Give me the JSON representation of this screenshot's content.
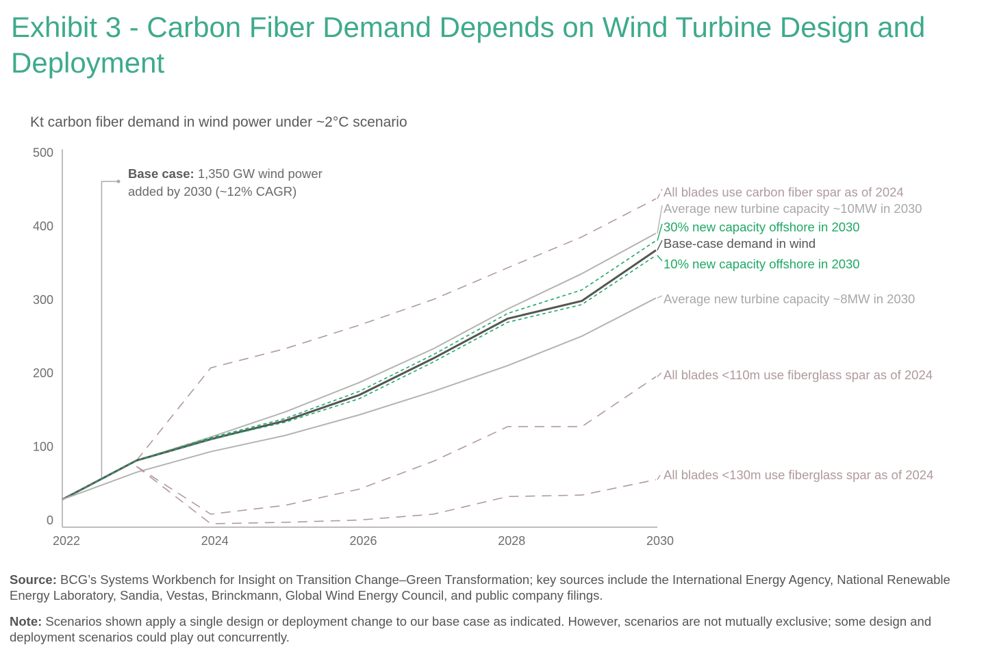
{
  "header": {
    "title": "Exhibit 3 - Carbon Fiber Demand Depends on Wind Turbine Design and Deployment",
    "subtitle": "Kt carbon fiber demand in wind power under ~2°C scenario"
  },
  "annotation": {
    "bold": "Base case:",
    "line1": " 1,350 GW wind power",
    "line2": "added by 2030 (~12% CAGR)"
  },
  "footer": {
    "source_label": "Source:",
    "source_text": " BCG’s Systems Workbench for Insight on Transition Change–Green Transformation; key sources include the International Energy Agency, National Renewable Energy Laboratory, Sandia, Vestas, Brinckmann, Global Wind Energy Council, and public company filings.",
    "note_label": "Note:",
    "note_text": " Scenarios shown apply a single design or deployment change to our base case as indicated. However, scenarios are not mutually exclusive; some design and deployment scenarios could play out concurrently."
  },
  "chart_data": {
    "type": "line",
    "title": "Kt carbon fiber demand in wind power under ~2°C scenario",
    "xlabel": "",
    "ylabel": "Kt",
    "x": [
      2022,
      2023,
      2024,
      2025,
      2026,
      2027,
      2028,
      2029,
      2030
    ],
    "x_ticks": [
      "2022",
      "2024",
      "2026",
      "2028",
      "2030"
    ],
    "y_ticks": [
      "0",
      "100",
      "200",
      "300",
      "400",
      "500"
    ],
    "ylim": [
      0,
      500
    ],
    "xlim": [
      2022,
      2030
    ],
    "grid": false,
    "legend": "direct labels at right end of lines",
    "series": [
      {
        "name": "All blades use carbon fiber spar as of 2024",
        "style": "dashed",
        "color": "#b09a9c",
        "x": [
          2023,
          2024,
          2025,
          2026,
          2027,
          2028,
          2029,
          2030
        ],
        "values": [
          86,
          212,
          238,
          270,
          305,
          348,
          390,
          442
        ]
      },
      {
        "name": "Average new turbine capacity ~10MW in 2030",
        "style": "solid",
        "color": "#b3b3b3",
        "x": [
          2022,
          2023,
          2024,
          2025,
          2026,
          2027,
          2028,
          2029,
          2030
        ],
        "values": [
          33,
          86,
          118,
          152,
          192,
          238,
          292,
          340,
          395
        ]
      },
      {
        "name": "30% new capacity offshore in 2030",
        "style": "dotted",
        "color": "#1fa865",
        "x": [
          2022,
          2023,
          2024,
          2025,
          2026,
          2027,
          2028,
          2029,
          2030
        ],
        "values": [
          33,
          86,
          117,
          143,
          180,
          230,
          286,
          318,
          385
        ]
      },
      {
        "name": "Base-case demand in wind",
        "style": "solid-bold",
        "color": "#555555",
        "x": [
          2022,
          2023,
          2024,
          2025,
          2026,
          2027,
          2028,
          2029,
          2030
        ],
        "values": [
          33,
          86,
          115,
          140,
          175,
          225,
          279,
          303,
          372
        ]
      },
      {
        "name": "10% new capacity offshore in 2030",
        "style": "dotted",
        "color": "#1fa865",
        "x": [
          2022,
          2023,
          2024,
          2025,
          2026,
          2027,
          2028,
          2029,
          2030
        ],
        "values": [
          33,
          86,
          115,
          138,
          170,
          220,
          274,
          298,
          365
        ]
      },
      {
        "name": "Average new turbine capacity ~8MW in 2030",
        "style": "solid",
        "color": "#b3b3b3",
        "x": [
          2022,
          2023,
          2024,
          2025,
          2026,
          2027,
          2028,
          2029,
          2030
        ],
        "values": [
          33,
          70,
          98,
          120,
          148,
          180,
          215,
          255,
          307
        ]
      },
      {
        "name": "All blades <110m use fiberglass spar as of 2024",
        "style": "dashed",
        "color": "#b09a9c",
        "x": [
          2023,
          2024,
          2025,
          2026,
          2027,
          2028,
          2029,
          2030
        ],
        "values": [
          78,
          13,
          25,
          47,
          85,
          132,
          132,
          200
        ]
      },
      {
        "name": "All blades <130m use fiberglass spar as of 2024",
        "style": "dashed",
        "color": "#b09a9c",
        "x": [
          2023,
          2024,
          2025,
          2026,
          2027,
          2028,
          2029,
          2030
        ],
        "values": [
          78,
          0,
          2,
          5,
          13,
          37,
          39,
          60
        ]
      }
    ],
    "labels": [
      {
        "text": "All blades use carbon fiber spar as of 2024",
        "color": "#b09a9c"
      },
      {
        "text": "Average new turbine capacity ~10MW in 2030",
        "color": "#a8a8a8"
      },
      {
        "text": "30% new capacity offshore in 2030",
        "color": "#1fa865"
      },
      {
        "text": "Base-case demand in wind",
        "color": "#555555"
      },
      {
        "text": "10% new capacity offshore in 2030",
        "color": "#1fa865"
      },
      {
        "text": "Average new turbine capacity ~8MW in 2030",
        "color": "#a8a8a8"
      },
      {
        "text": "All blades <110m use fiberglass spar as of 2024",
        "color": "#b09a9c"
      },
      {
        "text": "All blades <130m use fiberglass spar as of 2024",
        "color": "#b09a9c"
      }
    ],
    "annotation": "Base case: 1,350 GW wind power added by 2030 (~12% CAGR)"
  },
  "colors": {
    "title": "#3eaa8b",
    "axis": "#bdbdbd"
  }
}
